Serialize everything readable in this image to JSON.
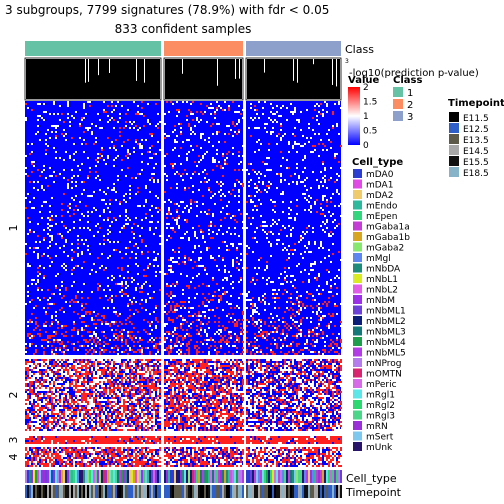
{
  "title_line1": "3 subgroups, 7799 signatures (78.9%) with fdr < 0.05",
  "title_line2": "833 confident samples",
  "colors": {
    "class1": "#66C2A5",
    "class2": "#FC8D62",
    "class3": "#8DA0CB",
    "heat_low": "#0000FF",
    "heat_mid": "#FFFFFF",
    "heat_high": "#FF0000"
  },
  "chart_data": {
    "type": "heatmap",
    "annotations": {
      "class_label": "Class",
      "prediction_label": "-log10(prediction p-value)",
      "prediction_axis_max": "3",
      "cell_type_label": "Cell_type",
      "timepoint_label": "Timepoint"
    },
    "column_groups": [
      {
        "class": "1",
        "color": "#66C2A5"
      },
      {
        "class": "2",
        "color": "#FC8D62"
      },
      {
        "class": "3",
        "color": "#8DA0CB"
      }
    ],
    "row_groups": [
      "1",
      "2",
      "3",
      "4"
    ],
    "value_scale": {
      "title": "Value",
      "ticks": [
        "2",
        "1.5",
        "1",
        "0.5",
        "0"
      ],
      "range": [
        0,
        2
      ]
    },
    "legend_class": {
      "title": "Class",
      "items": [
        {
          "label": "1",
          "color": "#66C2A5"
        },
        {
          "label": "2",
          "color": "#FC8D62"
        },
        {
          "label": "3",
          "color": "#8DA0CB"
        }
      ]
    },
    "legend_cell_type": {
      "title": "Cell_type",
      "items": [
        {
          "label": "mDA0",
          "color": "#2B3ED1"
        },
        {
          "label": "mDA1",
          "color": "#E04BE6"
        },
        {
          "label": "mDA2",
          "color": "#EFCB6B"
        },
        {
          "label": "mEndo",
          "color": "#2EB89C"
        },
        {
          "label": "mEpen",
          "color": "#33D67C"
        },
        {
          "label": "mGaba1a",
          "color": "#C43ED6"
        },
        {
          "label": "mGaba1b",
          "color": "#D8A520"
        },
        {
          "label": "mGaba2",
          "color": "#86E86E"
        },
        {
          "label": "mMgl",
          "color": "#5E86F0"
        },
        {
          "label": "mNbDA",
          "color": "#1E8C7A"
        },
        {
          "label": "mNbL1",
          "color": "#D9EB21"
        },
        {
          "label": "mNbL2",
          "color": "#E15CE8"
        },
        {
          "label": "mNbM",
          "color": "#9B30E8"
        },
        {
          "label": "mNbML1",
          "color": "#6B41D9"
        },
        {
          "label": "mNbML2",
          "color": "#0A1E7A"
        },
        {
          "label": "mNbML3",
          "color": "#147878"
        },
        {
          "label": "mNbML4",
          "color": "#1E9E4A"
        },
        {
          "label": "mNbML5",
          "color": "#B33CE6"
        },
        {
          "label": "mNProg",
          "color": "#B47CEC"
        },
        {
          "label": "mOMTN",
          "color": "#D9256E"
        },
        {
          "label": "mPeric",
          "color": "#D86CE8"
        },
        {
          "label": "mRgl1",
          "color": "#5CE6E8"
        },
        {
          "label": "mRgl2",
          "color": "#2ED870"
        },
        {
          "label": "mRgl3",
          "color": "#4CD68A"
        },
        {
          "label": "mRN",
          "color": "#9A30D8"
        },
        {
          "label": "mSert",
          "color": "#7CC8EE"
        },
        {
          "label": "mUnk",
          "color": "#281468"
        }
      ]
    },
    "legend_timepoint": {
      "title": "Timepoint",
      "items": [
        {
          "label": "E11.5",
          "color": "#000000"
        },
        {
          "label": "E12.5",
          "color": "#2E5FC8"
        },
        {
          "label": "E13.5",
          "color": "#5E5A4A"
        },
        {
          "label": "E14.5",
          "color": "#A8A8A8"
        },
        {
          "label": "E15.5",
          "color": "#111111"
        },
        {
          "label": "E18.5",
          "color": "#87B3C8"
        }
      ]
    }
  }
}
